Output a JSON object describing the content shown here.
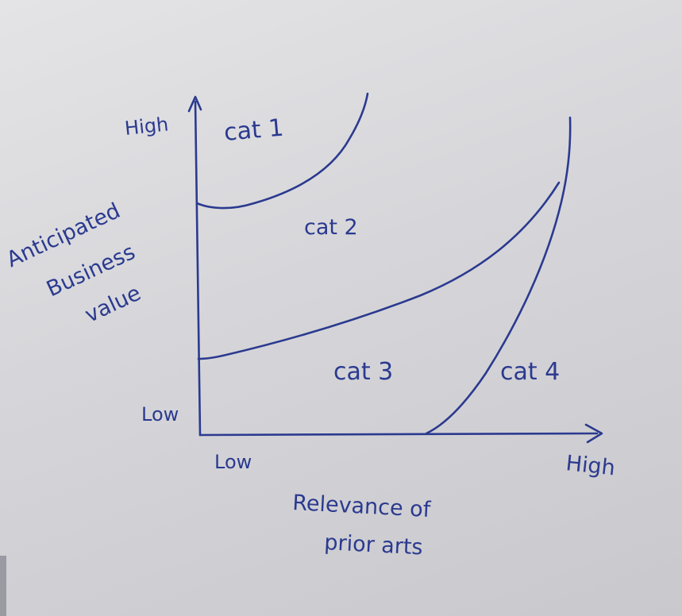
{
  "diagram": {
    "y_axis": {
      "label_lines": [
        "Anticipated",
        "Business",
        "value"
      ],
      "high_label": "High",
      "low_label": "Low"
    },
    "x_axis": {
      "label_lines": [
        "Relevance of",
        "prior arts"
      ],
      "low_label": "Low",
      "high_label": "High"
    },
    "regions": [
      {
        "label": "cat 1"
      },
      {
        "label": "cat 2"
      },
      {
        "label": "cat 3"
      },
      {
        "label": "cat 4"
      }
    ],
    "ink_color": "#2b3a8f",
    "paper_color": "#dcdcdf"
  }
}
